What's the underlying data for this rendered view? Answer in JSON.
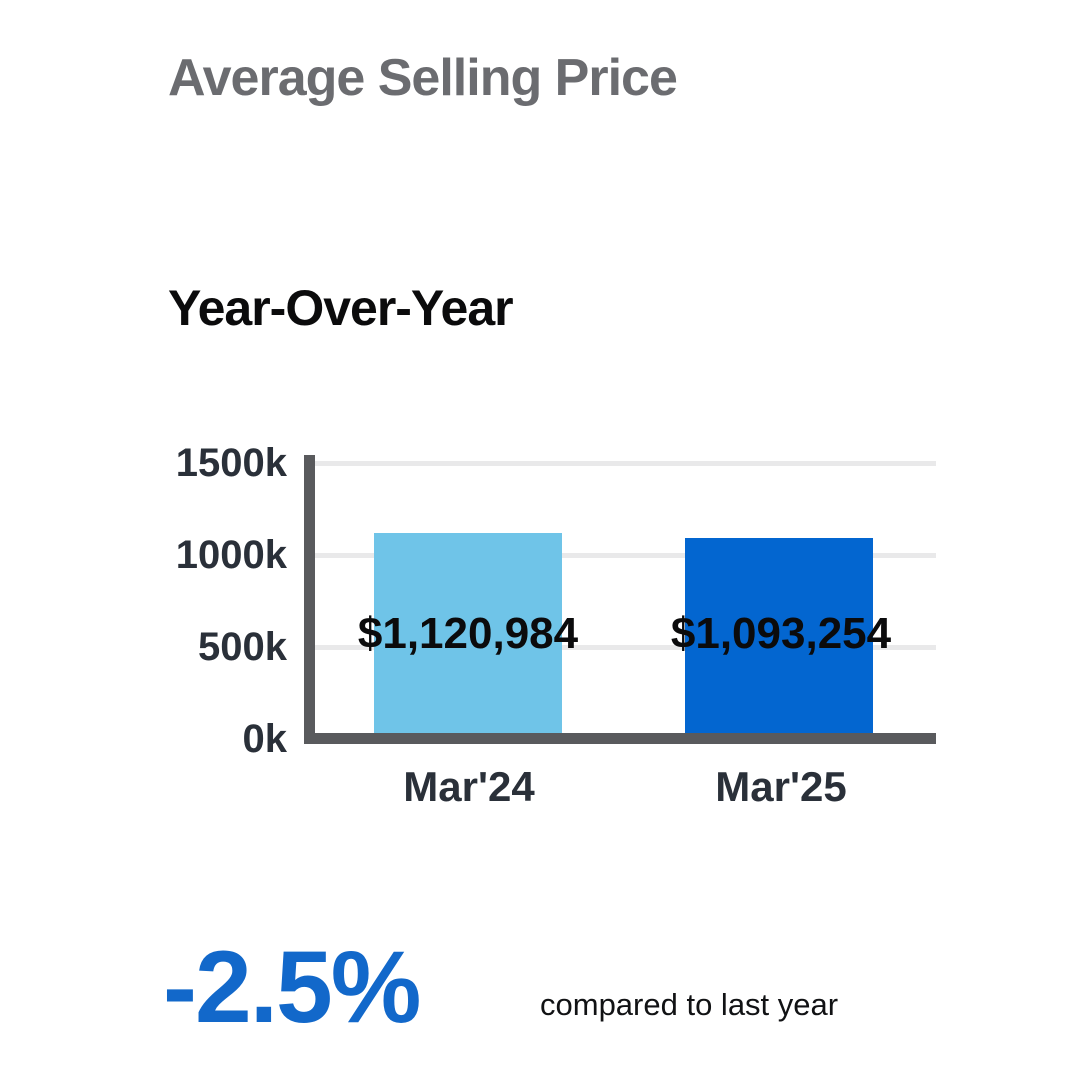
{
  "page": {
    "title": "Average Selling Price",
    "section_title": "Year-Over-Year"
  },
  "chart_data": {
    "type": "bar",
    "title": "Year-Over-Year",
    "categories": [
      "Mar'24",
      "Mar'25"
    ],
    "values": [
      1120984,
      1093254
    ],
    "value_labels": [
      "$1,120,984",
      "$1,093,254"
    ],
    "series": [
      {
        "name": "Mar'24",
        "value": 1120984,
        "color": "#6FC4E8"
      },
      {
        "name": "Mar'25",
        "value": 1093254,
        "color": "#0366D0"
      }
    ],
    "xlabel": "",
    "ylabel": "",
    "ylim": [
      0,
      1500000
    ],
    "yticks": [
      "1500k",
      "1000k",
      "500k",
      "0k"
    ],
    "grid": true,
    "legend": false,
    "axis_color": "#595A5D",
    "gridline_color": "#E9E9EA",
    "tick_label_color": "#2A3039"
  },
  "footer": {
    "change_percent": "-2.5%",
    "change_caption": "compared to last year",
    "accent_color": "#1268CA"
  },
  "colors": {
    "background": "#FFFFFF",
    "title_gray": "#6B6C70",
    "text_black": "#0B0B0C"
  }
}
